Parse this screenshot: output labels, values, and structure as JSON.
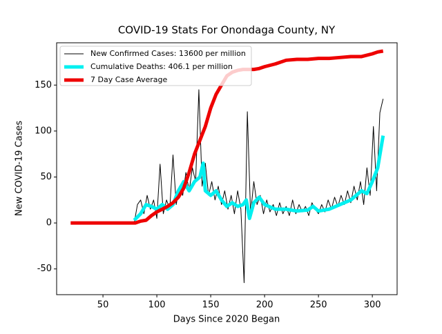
{
  "chart_data": {
    "type": "line",
    "title": "COVID-19 Stats For Onondaga County, NY",
    "xlabel": "Days Since 2020 Began",
    "ylabel": "New COVID-19 Cases",
    "xlim": [
      7,
      323
    ],
    "ylim": [
      -78,
      196
    ],
    "xticks": [
      50,
      100,
      150,
      200,
      250,
      300
    ],
    "yticks": [
      -50,
      0,
      50,
      100,
      150
    ],
    "legend": "upper left",
    "series": [
      {
        "name": "New Confirmed Cases: 13600 per million",
        "color": "#000000",
        "linewidth": 1,
        "x": [
          79,
          82,
          85,
          88,
          91,
          94,
          97,
          100,
          103,
          106,
          109,
          112,
          115,
          118,
          121,
          124,
          127,
          130,
          133,
          136,
          139,
          142,
          145,
          148,
          151,
          154,
          157,
          160,
          163,
          166,
          169,
          172,
          175,
          178,
          181,
          184,
          187,
          190,
          193,
          196,
          199,
          202,
          205,
          208,
          211,
          214,
          217,
          220,
          223,
          226,
          229,
          232,
          235,
          238,
          241,
          244,
          247,
          250,
          253,
          256,
          259,
          262,
          265,
          268,
          271,
          274,
          277,
          280,
          283,
          286,
          289,
          292,
          295,
          298,
          301,
          304,
          307,
          310
        ],
        "values": [
          0,
          20,
          25,
          10,
          30,
          15,
          25,
          5,
          64,
          10,
          25,
          15,
          74,
          20,
          40,
          30,
          55,
          35,
          60,
          45,
          145,
          40,
          65,
          30,
          45,
          25,
          40,
          20,
          35,
          15,
          30,
          10,
          35,
          15,
          -65,
          121,
          10,
          45,
          20,
          30,
          10,
          25,
          12,
          20,
          8,
          22,
          10,
          18,
          8,
          25,
          10,
          20,
          12,
          18,
          8,
          22,
          15,
          10,
          20,
          12,
          25,
          15,
          28,
          18,
          30,
          20,
          35,
          22,
          40,
          25,
          45,
          20,
          60,
          30,
          105,
          35,
          120,
          135
        ]
      },
      {
        "name": "Cumulative Deaths: 406.1 per million",
        "color": "#00f0f0",
        "linewidth": 5,
        "x": [
          79,
          85,
          90,
          95,
          100,
          105,
          110,
          115,
          120,
          125,
          130,
          135,
          140,
          143,
          145,
          150,
          155,
          160,
          165,
          170,
          175,
          180,
          183,
          186,
          190,
          195,
          200,
          210,
          220,
          230,
          240,
          245,
          250,
          260,
          270,
          280,
          290,
          295,
          300,
          305,
          310
        ],
        "values": [
          3,
          10,
          20,
          18,
          15,
          20,
          15,
          20,
          35,
          45,
          35,
          45,
          50,
          65,
          35,
          30,
          35,
          25,
          18,
          22,
          18,
          20,
          25,
          5,
          22,
          28,
          20,
          15,
          15,
          13,
          14,
          18,
          13,
          15,
          20,
          25,
          35,
          32,
          45,
          60,
          95
        ]
      },
      {
        "name": "7 Day Case Average",
        "color": "#ee0000",
        "linewidth": 5,
        "x": [
          20,
          30,
          40,
          50,
          60,
          70,
          80,
          85,
          90,
          95,
          100,
          105,
          110,
          115,
          120,
          125,
          130,
          135,
          140,
          145,
          150,
          155,
          160,
          165,
          170,
          175,
          180,
          185,
          190,
          195,
          200,
          210,
          220,
          230,
          240,
          250,
          260,
          270,
          280,
          290,
          300,
          305,
          310
        ],
        "values": [
          0,
          0,
          0,
          0,
          0,
          0,
          0,
          2,
          3,
          8,
          12,
          15,
          18,
          22,
          28,
          38,
          55,
          75,
          90,
          105,
          125,
          140,
          150,
          160,
          164,
          166,
          167,
          167,
          167,
          168,
          170,
          173,
          177,
          178,
          178,
          179,
          179,
          180,
          181,
          181,
          184,
          186,
          187
        ]
      }
    ]
  }
}
